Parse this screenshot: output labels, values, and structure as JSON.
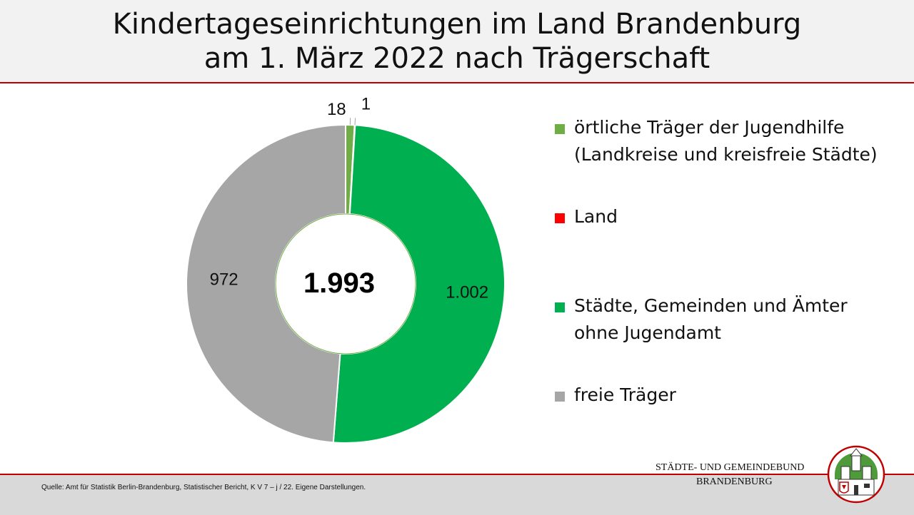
{
  "title": {
    "line1": "Kindertageseinrichtungen im Land Brandenburg",
    "line2": "am 1. März 2022 nach Trägerschaft"
  },
  "chart_data": {
    "type": "pie",
    "center_label": "1.993",
    "categories": [
      "örtliche Träger der Jugendhilfe\n(Landkreise und kreisfreie Städte)",
      "Land",
      "Städte, Gemeinden und Ämter\nohne Jugendamt",
      "freie Träger"
    ],
    "values": [
      18,
      1,
      1002,
      972
    ],
    "value_labels": [
      "18",
      "1",
      "1.002",
      "972"
    ],
    "colors": [
      "#70ad47",
      "#ff0000",
      "#00b050",
      "#a6a6a6"
    ],
    "legend_position": "right"
  },
  "footer": {
    "source": "Quelle: Amt für Statistik Berlin-Brandenburg, Statistischer Bericht, K V 7 – j / 22. Eigene Darstellungen."
  },
  "logo": {
    "line1": "STÄDTE-  UND GEMEINDEBUND",
    "line2": "BRANDENBURG",
    "icon": "coat-of-arms-icon"
  }
}
